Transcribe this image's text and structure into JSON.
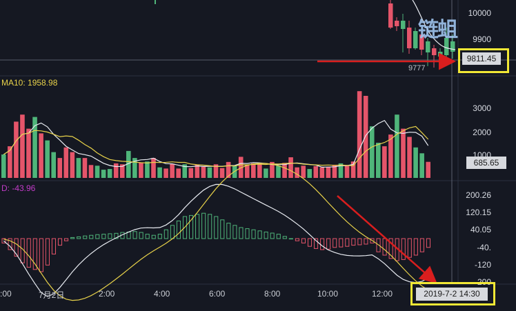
{
  "price_panel": {
    "y_ticks": [
      "10000",
      "9900"
    ],
    "current_price": "9811.45",
    "low_label": "9777"
  },
  "volume_panel": {
    "ma_label": "MA10: 1958.98",
    "y_ticks": [
      "3000",
      "2000",
      "1000"
    ],
    "current_volume": "685.65"
  },
  "macd_panel": {
    "label": "D: -43.96",
    "y_ticks": [
      "200.26",
      "120.15",
      "40.05",
      "-40.",
      "-120",
      "-200"
    ]
  },
  "x_axis": {
    "ticks": [
      ":00",
      "7月2日",
      "2:00",
      "4:00",
      "6:00",
      "8:00",
      "10:00",
      "12:00"
    ]
  },
  "crosshair_time": "2019-7-2 14:30",
  "watermark": "链蛆",
  "colors": {
    "up": "#e5556a",
    "down": "#4fb57a",
    "ma_white": "#e9ecf2",
    "ma_yellow": "#e8d24a",
    "highlight": "#f2e835",
    "arrow": "#d91e1e"
  },
  "volume_bars": [
    {
      "v": 1000,
      "c": "down"
    },
    {
      "v": 1350,
      "c": "up"
    },
    {
      "v": 2400,
      "c": "up"
    },
    {
      "v": 2700,
      "c": "up"
    },
    {
      "v": 2100,
      "c": "up"
    },
    {
      "v": 2600,
      "c": "down"
    },
    {
      "v": 1900,
      "c": "up"
    },
    {
      "v": 1600,
      "c": "down"
    },
    {
      "v": 1100,
      "c": "down"
    },
    {
      "v": 850,
      "c": "up"
    },
    {
      "v": 1300,
      "c": "up"
    },
    {
      "v": 1100,
      "c": "up"
    },
    {
      "v": 850,
      "c": "down"
    },
    {
      "v": 850,
      "c": "up"
    },
    {
      "v": 550,
      "c": "up"
    },
    {
      "v": 520,
      "c": "down"
    },
    {
      "v": 350,
      "c": "down"
    },
    {
      "v": 380,
      "c": "down"
    },
    {
      "v": 620,
      "c": "up"
    },
    {
      "v": 580,
      "c": "up"
    },
    {
      "v": 1150,
      "c": "down"
    },
    {
      "v": 850,
      "c": "down"
    },
    {
      "v": 650,
      "c": "up"
    },
    {
      "v": 700,
      "c": "down"
    },
    {
      "v": 850,
      "c": "up"
    },
    {
      "v": 450,
      "c": "down"
    },
    {
      "v": 400,
      "c": "up"
    },
    {
      "v": 600,
      "c": "up"
    },
    {
      "v": 400,
      "c": "up"
    },
    {
      "v": 580,
      "c": "down"
    },
    {
      "v": 420,
      "c": "up"
    },
    {
      "v": 560,
      "c": "up"
    },
    {
      "v": 480,
      "c": "up"
    },
    {
      "v": 450,
      "c": "down"
    },
    {
      "v": 580,
      "c": "up"
    },
    {
      "v": 420,
      "c": "up"
    },
    {
      "v": 680,
      "c": "up"
    },
    {
      "v": 520,
      "c": "down"
    },
    {
      "v": 900,
      "c": "up"
    },
    {
      "v": 560,
      "c": "up"
    },
    {
      "v": 620,
      "c": "up"
    },
    {
      "v": 600,
      "c": "up"
    },
    {
      "v": 400,
      "c": "down"
    },
    {
      "v": 680,
      "c": "up"
    },
    {
      "v": 520,
      "c": "down"
    },
    {
      "v": 640,
      "c": "up"
    },
    {
      "v": 880,
      "c": "up"
    },
    {
      "v": 450,
      "c": "up"
    },
    {
      "v": 520,
      "c": "up"
    },
    {
      "v": 380,
      "c": "down"
    },
    {
      "v": 500,
      "c": "up"
    },
    {
      "v": 450,
      "c": "up"
    },
    {
      "v": 480,
      "c": "up"
    },
    {
      "v": 560,
      "c": "up"
    },
    {
      "v": 620,
      "c": "down"
    },
    {
      "v": 520,
      "c": "up"
    },
    {
      "v": 700,
      "c": "up"
    },
    {
      "v": 3700,
      "c": "up"
    },
    {
      "v": 3500,
      "c": "up"
    },
    {
      "v": 2200,
      "c": "down"
    },
    {
      "v": 1500,
      "c": "down"
    },
    {
      "v": 1350,
      "c": "up"
    },
    {
      "v": 1850,
      "c": "up"
    },
    {
      "v": 2700,
      "c": "down"
    },
    {
      "v": 2100,
      "c": "up"
    },
    {
      "v": 1750,
      "c": "up"
    },
    {
      "v": 1300,
      "c": "down"
    },
    {
      "v": 1050,
      "c": "down"
    },
    {
      "v": 685,
      "c": "up"
    }
  ],
  "macd_hist": [
    -20,
    -50,
    -80,
    -110,
    -130,
    -140,
    -150,
    -120,
    -70,
    -30,
    -10,
    5,
    8,
    12,
    15,
    18,
    20,
    22,
    24,
    28,
    30,
    32,
    28,
    20,
    15,
    20,
    40,
    60,
    80,
    100,
    105,
    110,
    115,
    110,
    100,
    85,
    70,
    60,
    50,
    45,
    40,
    35,
    30,
    25,
    20,
    10,
    0,
    -10,
    -20,
    -35,
    -45,
    -50,
    -48,
    -40,
    -38,
    -35,
    -30,
    -28,
    -25,
    -20,
    -60,
    -75,
    -90,
    -100,
    -95,
    -85,
    -75,
    -60,
    -40
  ]
}
